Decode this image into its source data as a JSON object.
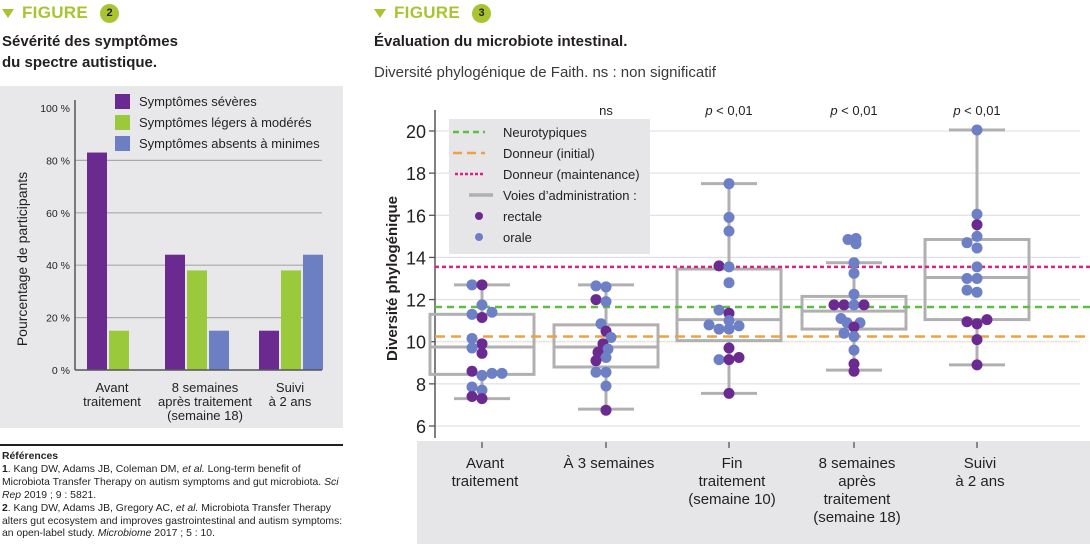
{
  "figure2": {
    "label": "FIGURE",
    "number": "2",
    "title_line1": "Sévérité des symptômes",
    "title_line2": "du spectre autistique."
  },
  "figure3": {
    "label": "FIGURE",
    "number": "3",
    "title": "Évaluation du microbiote intestinal.",
    "subtitle": "Diversité phylogénique de Faith. ns : non significatif"
  },
  "references": {
    "heading": "Références",
    "items": [
      {
        "num": "1",
        "pre": ". Kang DW, Adams JB, Coleman DM, ",
        "etal": "et al.",
        "text": " Long-term benefit of Microbiota Transfer Therapy on autism symptoms and gut microbiota. ",
        "journal": "Sci Rep",
        "cite": " 2019 ; 9 : 5821."
      },
      {
        "num": "2",
        "pre": ". Kang DW, Adams JB, Gregory AC, ",
        "etal": "et al.",
        "text": " Microbiota Transfer Therapy alters gut ecosystem and improves gastrointestinal and autism symptoms: an open-label study. ",
        "journal": "Microbiome",
        "cite": " 2017 ; 5 : 10."
      }
    ]
  },
  "colors": {
    "accent": "#a8c531",
    "severe": "#6b2a8f",
    "mild": "#9bc93c",
    "absent": "#6b7fc2",
    "rectale": "#6b2a8f",
    "orale": "#6d80c6",
    "neurotypiques": "#5cbf3f",
    "donneur_initial": "#f0a040",
    "donneur_maintenance": "#e0207f",
    "box": "#b0b0b2"
  },
  "chart_data": [
    {
      "type": "bar",
      "title": "Sévérité des symptômes du spectre autistique.",
      "xlabel": "",
      "ylabel": "Pourcentage de participants",
      "ylim": [
        0,
        100
      ],
      "yticks": [
        "0 %",
        "20 %",
        "40 %",
        "60 %",
        "80 %",
        "100 %"
      ],
      "ytick_values": [
        0,
        20,
        40,
        60,
        80,
        100
      ],
      "grid": true,
      "legend_position": "top-right",
      "categories": [
        [
          "Avant",
          "traitement"
        ],
        [
          "8 semaines",
          "après traitement",
          "(semaine 18)"
        ],
        [
          "Suivi",
          "à 2 ans"
        ]
      ],
      "series": [
        {
          "name": "Symptômes sévères",
          "color_key": "severe",
          "values": [
            83,
            44,
            15
          ]
        },
        {
          "name": "Symptômes légers à modérés",
          "color_key": "mild",
          "values": [
            15,
            38,
            38
          ]
        },
        {
          "name": "Symptômes absents à minimes",
          "color_key": "absent",
          "values": [
            null,
            15,
            44
          ]
        }
      ]
    },
    {
      "type": "box",
      "title": "Évaluation du microbiote intestinal.",
      "xlabel": "",
      "ylabel": "Diversité phylogénique",
      "ylim": [
        6,
        20
      ],
      "yticks": [
        6,
        8,
        10,
        12,
        14,
        16,
        18,
        20
      ],
      "grid": true,
      "legend_position": "top-left",
      "legend": [
        {
          "label": "Neurotypiques",
          "style": "green-dashed"
        },
        {
          "label": "Donneur (initial)",
          "style": "orange-dashed"
        },
        {
          "label": "Donneur (maintenance)",
          "style": "magenta-dotted"
        },
        {
          "label": "Voies d’administration :",
          "style": "gray-solid"
        },
        {
          "label": "rectale",
          "style": "purple-dot"
        },
        {
          "label": "orale",
          "style": "blue-dot"
        }
      ],
      "reference_lines": [
        {
          "name": "Neurotypiques",
          "value": 11.65,
          "color_key": "neurotypiques",
          "dash": "dashed"
        },
        {
          "name": "Donneur (initial)",
          "value": 10.25,
          "color_key": "donneur_initial",
          "dash": "longdash"
        },
        {
          "name": "Donneur (maintenance)",
          "value": 13.55,
          "color_key": "donneur_maintenance",
          "dash": "dotted"
        }
      ],
      "categories": [
        [
          "Avant",
          "traitement"
        ],
        [
          "À 3 semaines"
        ],
        [
          "Fin",
          "traitement",
          "(semaine 10)"
        ],
        [
          "8 semaines",
          "après",
          "traitement",
          "(semaine 18)"
        ],
        [
          "Suivi",
          "à 2 ans"
        ]
      ],
      "significance": [
        "",
        "ns",
        "p < 0,01",
        "p < 0,01",
        "p < 0,01"
      ],
      "boxes": [
        {
          "whisker_low": 7.3,
          "q1": 8.45,
          "median": 9.75,
          "q3": 11.3,
          "whisker_high": 12.7
        },
        {
          "whisker_low": 6.8,
          "q1": 8.8,
          "median": 9.75,
          "q3": 10.8,
          "whisker_high": 12.7
        },
        {
          "whisker_low": 7.55,
          "q1": 10.05,
          "median": 11.05,
          "q3": 13.45,
          "whisker_high": 17.5
        },
        {
          "whisker_low": 8.65,
          "q1": 10.6,
          "median": 11.45,
          "q3": 12.15,
          "whisker_high": 13.75
        },
        {
          "whisker_low": 8.9,
          "q1": 11.05,
          "median": 13.05,
          "q3": 14.85,
          "whisker_high": 20.05
        }
      ],
      "points": [
        [
          {
            "v": 12.7,
            "dx": -1,
            "r": "orale"
          },
          {
            "v": 12.7,
            "dx": 0,
            "r": "rectale"
          },
          {
            "v": 11.75,
            "dx": 0,
            "r": "orale"
          },
          {
            "v": 11.3,
            "dx": -1,
            "r": "orale"
          },
          {
            "v": 11.4,
            "dx": 1,
            "r": "orale"
          },
          {
            "v": 11.15,
            "dx": 0,
            "r": "rectale"
          },
          {
            "v": 10.15,
            "dx": -1,
            "r": "orale"
          },
          {
            "v": 9.9,
            "dx": 0,
            "r": "rectale"
          },
          {
            "v": 9.7,
            "dx": -1,
            "r": "orale"
          },
          {
            "v": 9.45,
            "dx": 0,
            "r": "rectale"
          },
          {
            "v": 8.6,
            "dx": -1,
            "r": "rectale"
          },
          {
            "v": 8.4,
            "dx": 0,
            "r": "orale"
          },
          {
            "v": 8.5,
            "dx": 1,
            "r": "orale"
          },
          {
            "v": 8.5,
            "dx": 2,
            "r": "orale"
          },
          {
            "v": 7.85,
            "dx": -1,
            "r": "orale"
          },
          {
            "v": 7.7,
            "dx": 0,
            "r": "orale"
          },
          {
            "v": 7.4,
            "dx": -1,
            "r": "rectale"
          },
          {
            "v": 7.3,
            "dx": 0,
            "r": "rectale"
          }
        ],
        [
          {
            "v": 12.65,
            "dx": -1,
            "r": "orale"
          },
          {
            "v": 12.6,
            "dx": 0,
            "r": "orale"
          },
          {
            "v": 12.0,
            "dx": -1,
            "r": "rectale"
          },
          {
            "v": 11.9,
            "dx": 0,
            "r": "orale"
          },
          {
            "v": 10.85,
            "dx": -0.5,
            "r": "orale"
          },
          {
            "v": 10.5,
            "dx": 0,
            "r": "rectale"
          },
          {
            "v": 10.2,
            "dx": 0.5,
            "r": "orale"
          },
          {
            "v": 9.9,
            "dx": -0.3,
            "r": "rectale"
          },
          {
            "v": 9.65,
            "dx": 0.2,
            "r": "orale"
          },
          {
            "v": 9.5,
            "dx": -0.8,
            "r": "rectale"
          },
          {
            "v": 9.25,
            "dx": 0,
            "r": "orale"
          },
          {
            "v": 9.1,
            "dx": -1,
            "r": "rectale"
          },
          {
            "v": 8.55,
            "dx": -1,
            "r": "orale"
          },
          {
            "v": 8.55,
            "dx": 0,
            "r": "orale"
          },
          {
            "v": 7.9,
            "dx": 0,
            "r": "orale"
          },
          {
            "v": 6.75,
            "dx": 0,
            "r": "rectale"
          }
        ],
        [
          {
            "v": 17.5,
            "dx": 0,
            "r": "orale"
          },
          {
            "v": 15.9,
            "dx": 0,
            "r": "orale"
          },
          {
            "v": 15.25,
            "dx": 0,
            "r": "orale"
          },
          {
            "v": 13.6,
            "dx": -1,
            "r": "rectale"
          },
          {
            "v": 13.55,
            "dx": 0,
            "r": "orale"
          },
          {
            "v": 12.8,
            "dx": 0,
            "r": "orale"
          },
          {
            "v": 11.5,
            "dx": -1,
            "r": "orale"
          },
          {
            "v": 11.35,
            "dx": 0,
            "r": "rectale"
          },
          {
            "v": 11.0,
            "dx": 0,
            "r": "orale"
          },
          {
            "v": 10.8,
            "dx": -2,
            "r": "orale"
          },
          {
            "v": 10.6,
            "dx": -1,
            "r": "orale"
          },
          {
            "v": 10.6,
            "dx": 0,
            "r": "orale"
          },
          {
            "v": 10.75,
            "dx": 1,
            "r": "orale"
          },
          {
            "v": 9.7,
            "dx": 0,
            "r": "rectale"
          },
          {
            "v": 9.15,
            "dx": -1,
            "r": "orale"
          },
          {
            "v": 9.15,
            "dx": 0,
            "r": "rectale"
          },
          {
            "v": 9.25,
            "dx": 1,
            "r": "rectale"
          },
          {
            "v": 7.55,
            "dx": 0,
            "r": "rectale"
          }
        ],
        [
          {
            "v": 14.85,
            "dx": -0.6,
            "r": "orale"
          },
          {
            "v": 14.9,
            "dx": 0.2,
            "r": "orale"
          },
          {
            "v": 14.65,
            "dx": 0.2,
            "r": "orale"
          },
          {
            "v": 13.75,
            "dx": 0,
            "r": "orale"
          },
          {
            "v": 13.25,
            "dx": 0,
            "r": "orale"
          },
          {
            "v": 12.25,
            "dx": 0,
            "r": "orale"
          },
          {
            "v": 11.75,
            "dx": -2,
            "r": "rectale"
          },
          {
            "v": 11.75,
            "dx": -1,
            "r": "rectale"
          },
          {
            "v": 11.75,
            "dx": 0,
            "r": "orale"
          },
          {
            "v": 11.75,
            "dx": 1,
            "r": "rectale"
          },
          {
            "v": 11.1,
            "dx": -1.3,
            "r": "orale"
          },
          {
            "v": 10.9,
            "dx": -0.7,
            "r": "orale"
          },
          {
            "v": 10.9,
            "dx": 0.6,
            "r": "orale"
          },
          {
            "v": 10.7,
            "dx": 0,
            "r": "rectale"
          },
          {
            "v": 10.4,
            "dx": -1,
            "r": "orale"
          },
          {
            "v": 10.25,
            "dx": 0,
            "r": "orale"
          },
          {
            "v": 9.6,
            "dx": 0,
            "r": "orale"
          },
          {
            "v": 8.95,
            "dx": 0,
            "r": "rectale"
          },
          {
            "v": 8.6,
            "dx": 0,
            "r": "rectale"
          }
        ],
        [
          {
            "v": 20.05,
            "dx": 0,
            "r": "orale"
          },
          {
            "v": 16.05,
            "dx": 0,
            "r": "orale"
          },
          {
            "v": 15.55,
            "dx": 0,
            "r": "rectale"
          },
          {
            "v": 15.0,
            "dx": 0,
            "r": "orale"
          },
          {
            "v": 14.7,
            "dx": -1,
            "r": "orale"
          },
          {
            "v": 14.45,
            "dx": 0,
            "r": "orale"
          },
          {
            "v": 13.55,
            "dx": 0,
            "r": "orale"
          },
          {
            "v": 13.0,
            "dx": -1,
            "r": "orale"
          },
          {
            "v": 13.0,
            "dx": 0,
            "r": "orale"
          },
          {
            "v": 12.45,
            "dx": -1,
            "r": "orale"
          },
          {
            "v": 12.35,
            "dx": 0,
            "r": "orale"
          },
          {
            "v": 10.95,
            "dx": -1,
            "r": "rectale"
          },
          {
            "v": 10.85,
            "dx": 0,
            "r": "rectale"
          },
          {
            "v": 11.05,
            "dx": 1,
            "r": "rectale"
          },
          {
            "v": 10.1,
            "dx": 0,
            "r": "rectale"
          },
          {
            "v": 8.9,
            "dx": 0,
            "r": "rectale"
          }
        ]
      ]
    }
  ]
}
